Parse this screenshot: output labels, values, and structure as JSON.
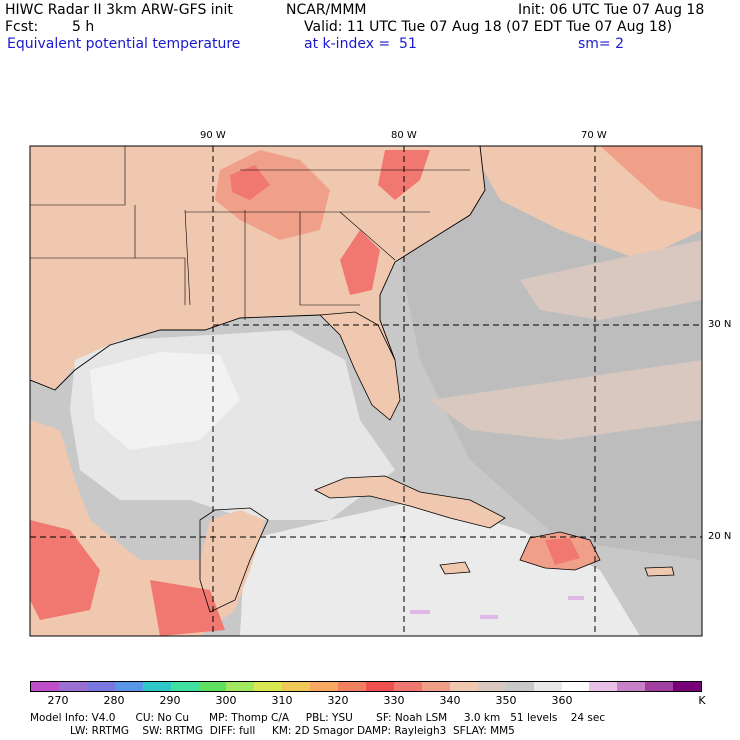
{
  "header": {
    "model_title": "HIWC Radar II 3km ARW-GFS init",
    "org": "NCAR/MMM",
    "init": "Init: 06 UTC Tue 07 Aug 18",
    "fcst_label": "Fcst:",
    "fcst_value": "5 h",
    "valid": "Valid: 11 UTC Tue 07 Aug 18 (07 EDT Tue 07 Aug 18)",
    "field_name": "Equivalent potential temperature",
    "level": "at k-index =  51",
    "smoothing": "sm= 2"
  },
  "map": {
    "lon_labels": [
      "90 W",
      "80 W",
      "70 W"
    ],
    "lat_labels": [
      "30 N",
      "20 N"
    ]
  },
  "colorbar": {
    "colors": [
      "#c050c8",
      "#9a70d0",
      "#7878e0",
      "#5a96e8",
      "#30c8c8",
      "#40e0a0",
      "#60e060",
      "#a0e860",
      "#d8e850",
      "#f0c858",
      "#f8a860",
      "#f08060",
      "#f05050",
      "#f07870",
      "#f0a088",
      "#f0c8b0",
      "#d8c8c0",
      "#c8c8c8",
      "#e8e8e8",
      "#ffffff",
      "#e8c0e8",
      "#c880c8",
      "#a040a0",
      "#780078"
    ],
    "tick_labels": [
      "270",
      "280",
      "290",
      "300",
      "310",
      "320",
      "330",
      "340",
      "350",
      "360",
      "K"
    ]
  },
  "model_info": {
    "line1": "Model Info: V4.0      CU: No Cu      MP: Thomp C/A     PBL: YSU       SF: Noah LSM     3.0 km   51 levels    24 sec",
    "line2": "            LW: RRTMG    SW: RRTMG  DIFF: full     KM: 2D Smagor DAMP: Rayleigh3  SFLAY: MM5"
  }
}
